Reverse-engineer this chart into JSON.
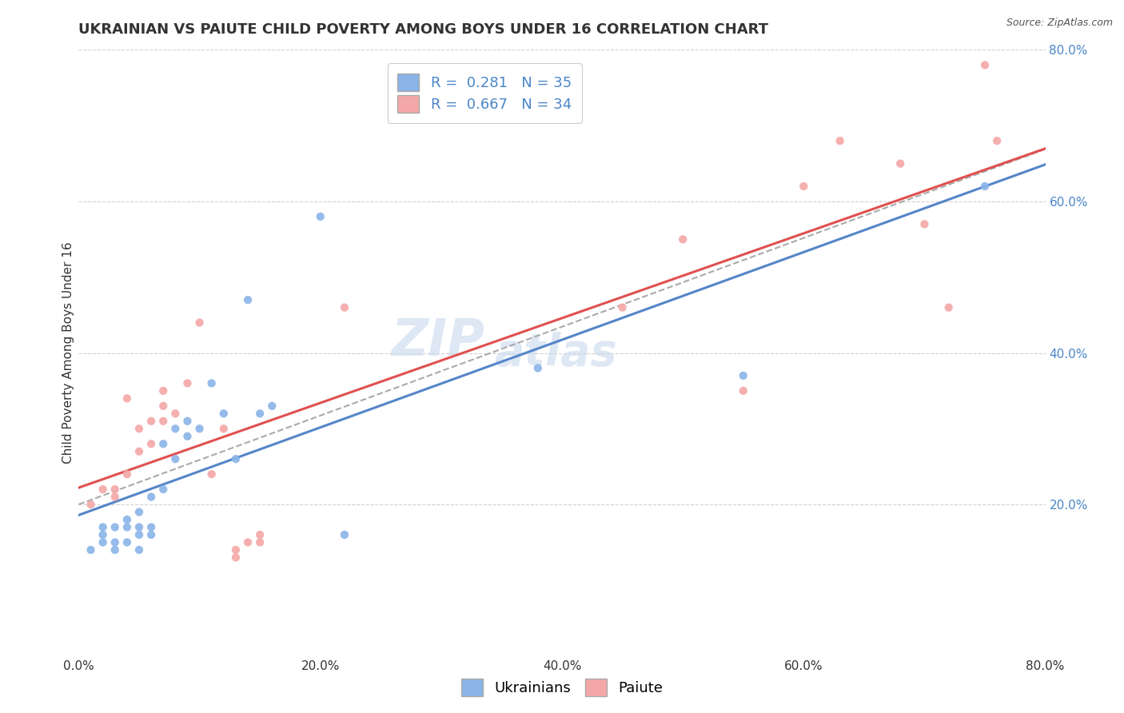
{
  "title": "UKRAINIAN VS PAIUTE CHILD POVERTY AMONG BOYS UNDER 16 CORRELATION CHART",
  "source": "Source: ZipAtlas.com",
  "ylabel": "Child Poverty Among Boys Under 16",
  "xlim": [
    0,
    0.8
  ],
  "ylim": [
    0,
    0.8
  ],
  "xtick_labels": [
    "0.0%",
    "20.0%",
    "40.0%",
    "60.0%",
    "80.0%"
  ],
  "xtick_vals": [
    0.0,
    0.2,
    0.4,
    0.6,
    0.8
  ],
  "ytick_labels": [
    "20.0%",
    "40.0%",
    "60.0%",
    "80.0%"
  ],
  "ytick_vals": [
    0.2,
    0.4,
    0.6,
    0.8
  ],
  "watermark_line1": "ZIP",
  "watermark_line2": "atlas",
  "blue_R": "0.281",
  "blue_N": "35",
  "pink_R": "0.667",
  "pink_N": "34",
  "blue_color": "#8ab4e8",
  "pink_color": "#f4a7a7",
  "blue_line_color": "#5585c8",
  "pink_line_color": "#e05050",
  "dashed_line_color": "#aaaaaa",
  "grid_color": "#cccccc",
  "background_color": "#ffffff",
  "blue_x": [
    0.01,
    0.02,
    0.02,
    0.02,
    0.03,
    0.03,
    0.03,
    0.04,
    0.04,
    0.04,
    0.05,
    0.05,
    0.05,
    0.05,
    0.06,
    0.06,
    0.06,
    0.07,
    0.07,
    0.08,
    0.08,
    0.09,
    0.09,
    0.1,
    0.11,
    0.12,
    0.13,
    0.14,
    0.15,
    0.16,
    0.2,
    0.22,
    0.38,
    0.55,
    0.75
  ],
  "blue_y": [
    0.14,
    0.15,
    0.16,
    0.17,
    0.14,
    0.15,
    0.17,
    0.15,
    0.17,
    0.18,
    0.14,
    0.16,
    0.17,
    0.19,
    0.16,
    0.17,
    0.21,
    0.22,
    0.28,
    0.26,
    0.3,
    0.29,
    0.31,
    0.3,
    0.36,
    0.32,
    0.26,
    0.47,
    0.32,
    0.33,
    0.58,
    0.16,
    0.38,
    0.37,
    0.62
  ],
  "pink_x": [
    0.01,
    0.02,
    0.03,
    0.03,
    0.04,
    0.04,
    0.05,
    0.05,
    0.06,
    0.06,
    0.07,
    0.07,
    0.07,
    0.08,
    0.09,
    0.1,
    0.11,
    0.12,
    0.13,
    0.13,
    0.14,
    0.15,
    0.15,
    0.22,
    0.45,
    0.5,
    0.55,
    0.6,
    0.63,
    0.68,
    0.7,
    0.72,
    0.75,
    0.76
  ],
  "pink_y": [
    0.2,
    0.22,
    0.21,
    0.22,
    0.24,
    0.34,
    0.27,
    0.3,
    0.28,
    0.31,
    0.31,
    0.33,
    0.35,
    0.32,
    0.36,
    0.44,
    0.24,
    0.3,
    0.14,
    0.13,
    0.15,
    0.15,
    0.16,
    0.46,
    0.46,
    0.55,
    0.35,
    0.62,
    0.68,
    0.65,
    0.57,
    0.46,
    0.78,
    0.68
  ],
  "title_fontsize": 13,
  "axis_label_fontsize": 11,
  "tick_fontsize": 11,
  "legend_fontsize": 13,
  "watermark_fontsize_zip": 46,
  "watermark_fontsize_atlas": 40
}
